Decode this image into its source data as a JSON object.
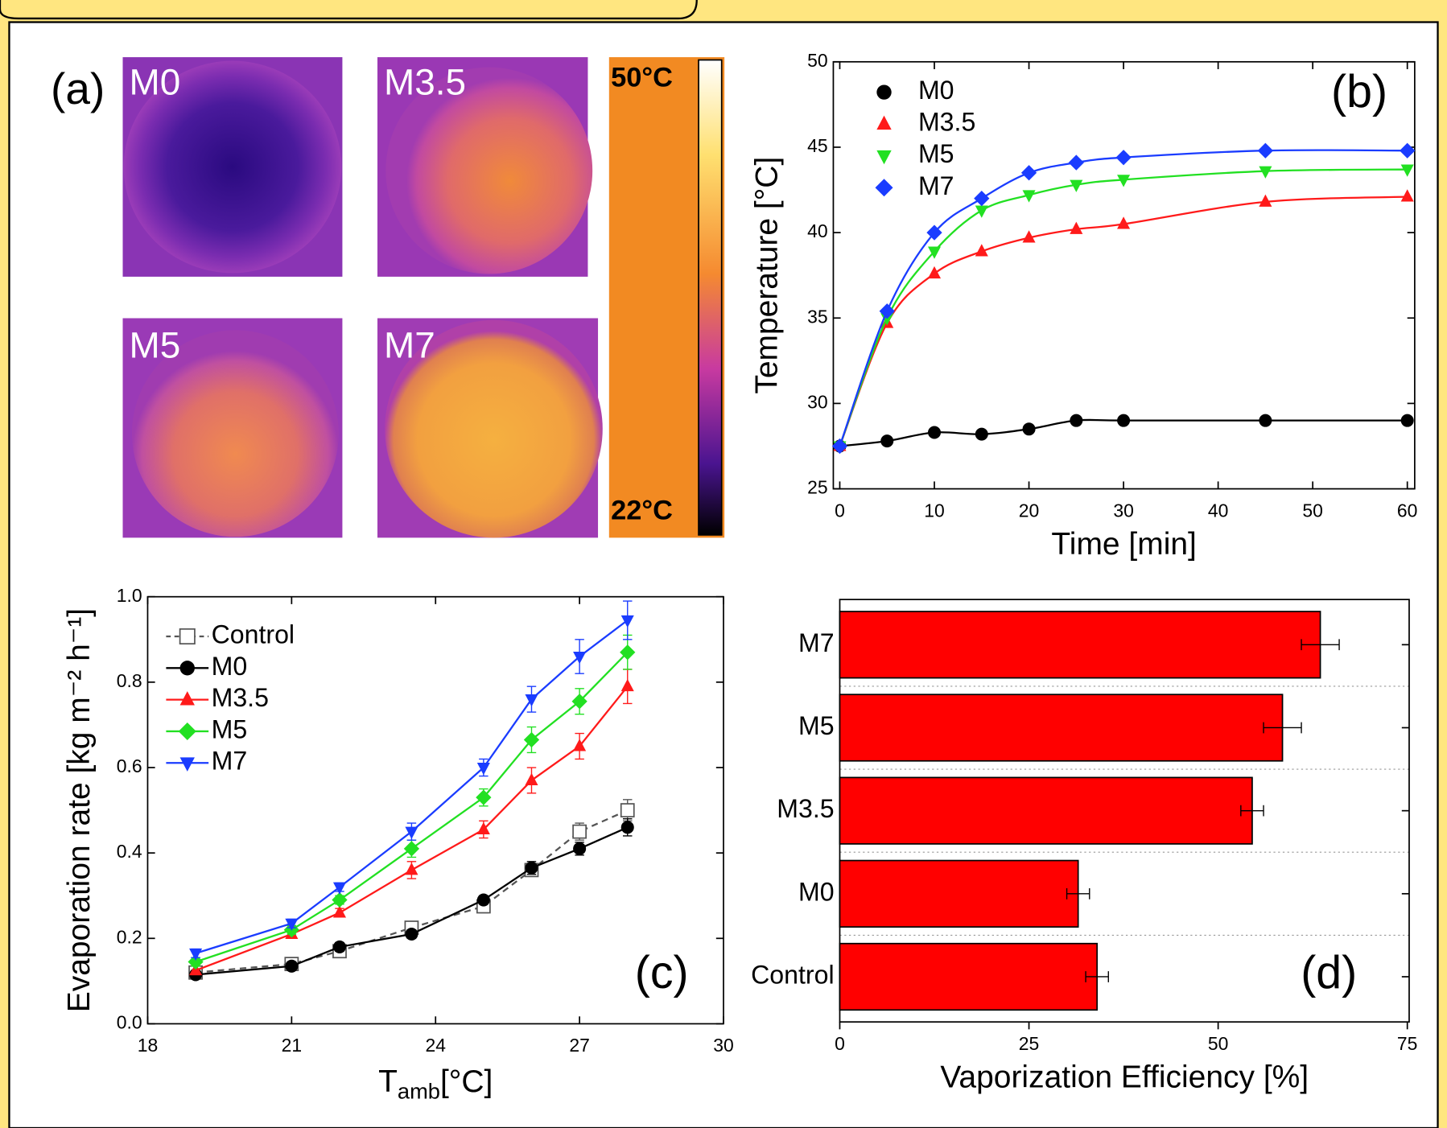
{
  "thermal": {
    "label": "(a)",
    "images": [
      "M0",
      "M3.5",
      "M5",
      "M7"
    ],
    "colorbar_max": "50°C",
    "colorbar_min": "22°C"
  },
  "chart_data": [
    {
      "type": "line",
      "panel": "(b)",
      "xlabel": "Time [min]",
      "ylabel": "Temperature [°C]",
      "x": [
        0,
        5,
        10,
        15,
        20,
        25,
        30,
        45,
        60
      ],
      "xlim": [
        0,
        60
      ],
      "xticks": [
        0,
        10,
        20,
        30,
        40,
        50,
        60
      ],
      "ylim": [
        25,
        50
      ],
      "yticks": [
        25,
        30,
        35,
        40,
        45,
        50
      ],
      "smooth": true,
      "legend": "upper left",
      "series": [
        {
          "name": "M0",
          "color": "#000000",
          "marker": "circle",
          "values": [
            27.5,
            27.8,
            28.3,
            28.2,
            28.5,
            29.0,
            29.0,
            29.0,
            29.0
          ]
        },
        {
          "name": "M3.5",
          "color": "#ff1a1a",
          "marker": "triangle-up",
          "values": [
            27.5,
            34.7,
            37.6,
            38.9,
            39.7,
            40.2,
            40.5,
            41.8,
            42.1
          ]
        },
        {
          "name": "M5",
          "color": "#22e022",
          "marker": "triangle-down",
          "values": [
            27.5,
            35.0,
            38.9,
            41.3,
            42.2,
            42.8,
            43.1,
            43.6,
            43.7
          ]
        },
        {
          "name": "M7",
          "color": "#1a3cff",
          "marker": "diamond",
          "values": [
            27.5,
            35.4,
            40.0,
            42.0,
            43.5,
            44.1,
            44.4,
            44.8,
            44.8
          ]
        }
      ]
    },
    {
      "type": "line",
      "panel": "(c)",
      "xlabel": "T",
      "xlabel_sub": "amb",
      "xlabel_unit": "[°C]",
      "ylabel": "Evaporation rate [kg m⁻² h⁻¹]",
      "x": [
        19,
        21,
        22,
        23.5,
        25,
        26,
        27,
        28
      ],
      "xlim": [
        18,
        30
      ],
      "xticks": [
        18,
        21,
        24,
        27,
        30
      ],
      "ylim": [
        0,
        1
      ],
      "yticks": [
        {
          "value": 0,
          "label": "0.0"
        },
        0.2,
        0.4,
        0.6,
        0.8,
        {
          "value": 1,
          "label": "1.0"
        }
      ],
      "legend": "upper left",
      "series": [
        {
          "name": "Control",
          "color": "#555555",
          "marker": "square-open",
          "dashed": true,
          "values": [
            0.12,
            0.14,
            0.17,
            0.225,
            0.275,
            0.36,
            0.45,
            0.5
          ],
          "errors": [
            0.01,
            0.01,
            0.01,
            0.01,
            0.015,
            0.015,
            0.02,
            0.025
          ]
        },
        {
          "name": "M0",
          "color": "#000000",
          "marker": "circle",
          "values": [
            0.115,
            0.135,
            0.18,
            0.21,
            0.29,
            0.365,
            0.41,
            0.46
          ],
          "errors": [
            0.01,
            0.01,
            0.01,
            0.01,
            0.01,
            0.015,
            0.015,
            0.02
          ]
        },
        {
          "name": "M3.5",
          "color": "#ff1a1a",
          "marker": "triangle-up",
          "values": [
            0.125,
            0.21,
            0.26,
            0.36,
            0.455,
            0.57,
            0.65,
            0.79
          ],
          "errors": [
            0.01,
            0.01,
            0.01,
            0.02,
            0.02,
            0.03,
            0.03,
            0.04
          ]
        },
        {
          "name": "M5",
          "color": "#22e022",
          "marker": "diamond",
          "values": [
            0.145,
            0.22,
            0.29,
            0.41,
            0.53,
            0.665,
            0.755,
            0.87
          ],
          "errors": [
            0.01,
            0.01,
            0.01,
            0.02,
            0.02,
            0.03,
            0.03,
            0.04
          ]
        },
        {
          "name": "M7",
          "color": "#1a3cff",
          "marker": "triangle-down",
          "values": [
            0.165,
            0.235,
            0.32,
            0.45,
            0.6,
            0.76,
            0.86,
            0.945
          ],
          "errors": [
            0.01,
            0.01,
            0.01,
            0.02,
            0.02,
            0.03,
            0.04,
            0.045
          ]
        }
      ]
    },
    {
      "type": "barh",
      "panel": "(d)",
      "xlabel": "Vaporization Efficiency [%]",
      "categories": [
        "Control",
        "M0",
        "M3.5",
        "M5",
        "M7"
      ],
      "values": [
        34,
        31.5,
        54.5,
        58.5,
        63.5
      ],
      "errors": [
        1.5,
        1.5,
        1.5,
        2.5,
        2.5
      ],
      "color": "#ff0000",
      "xlim": [
        0,
        75
      ],
      "xticks": [
        0,
        25,
        50,
        75
      ],
      "grid": true
    }
  ]
}
